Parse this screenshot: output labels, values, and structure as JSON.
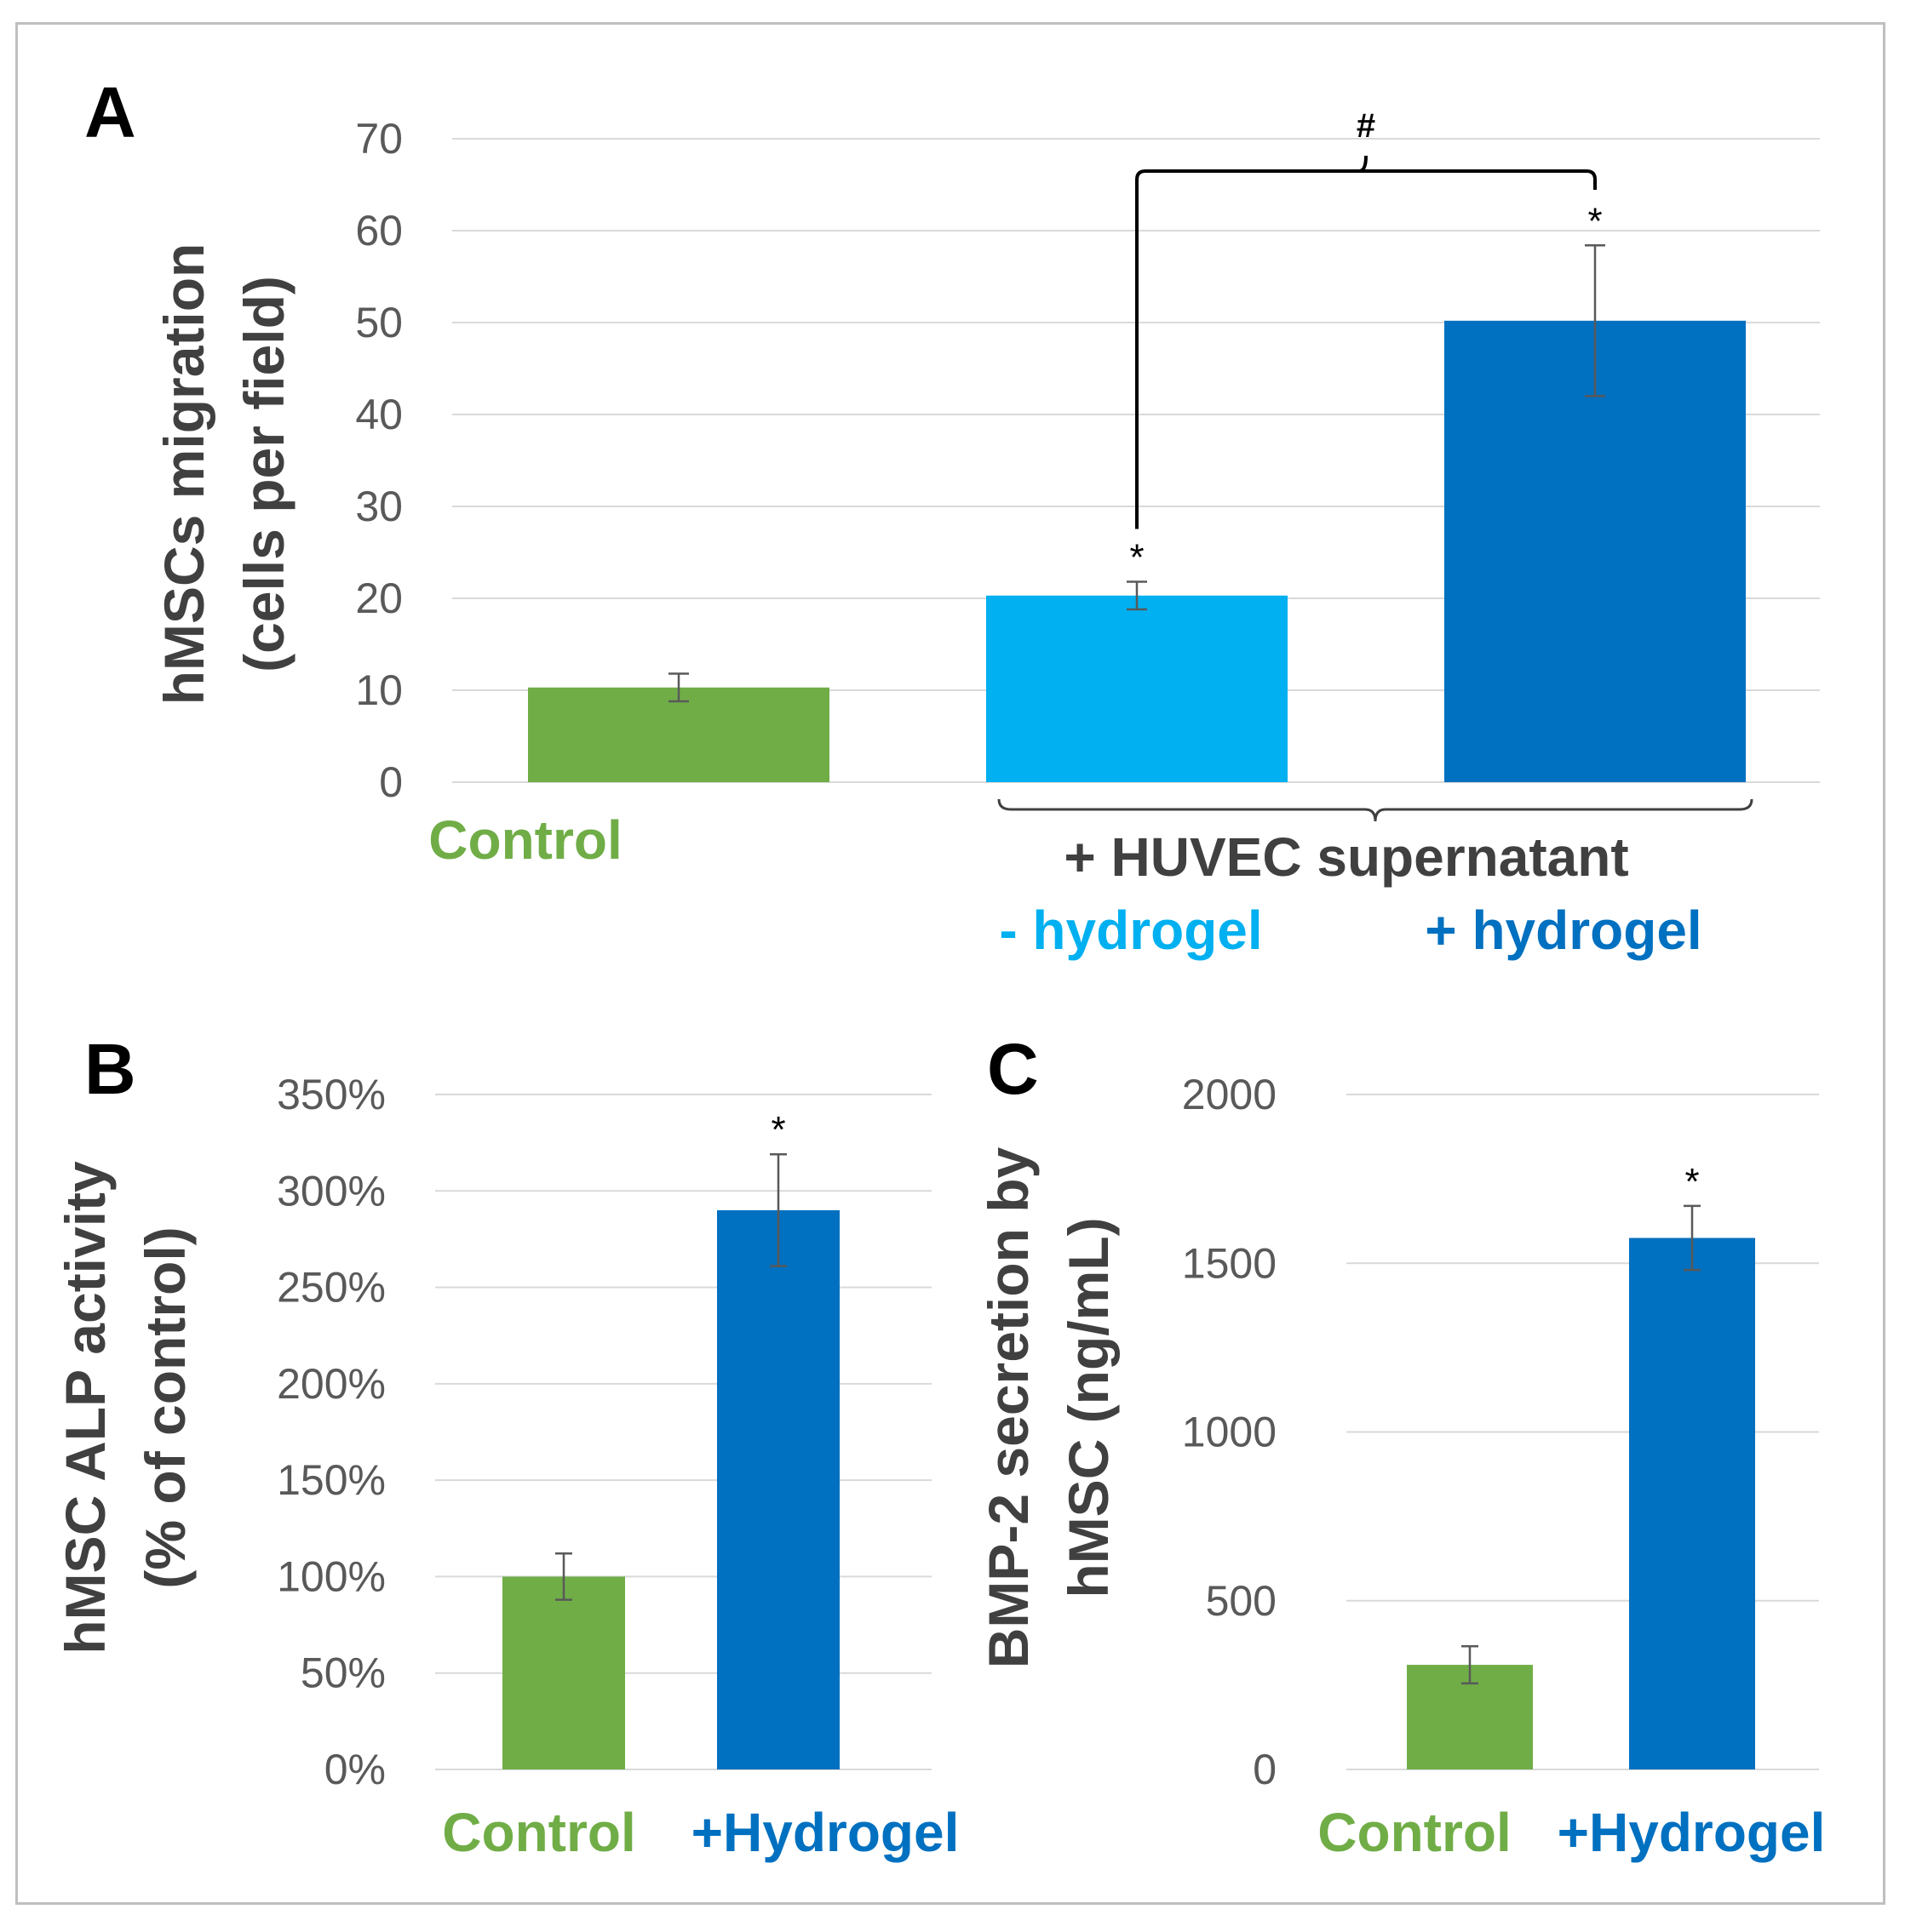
{
  "colors": {
    "green": "#70ad47",
    "light_blue": "#00b0f0",
    "dark_blue": "#0070c0",
    "axis_text": "#595959",
    "label_text": "#404040"
  },
  "chart_data": [
    {
      "panel": "A",
      "type": "bar",
      "ylabel_line1": "hMSCs migration",
      "ylabel_line2": "(cells per field)",
      "ylim": [
        0,
        70
      ],
      "yticks": [
        "0",
        "10",
        "20",
        "30",
        "40",
        "50",
        "60",
        "70"
      ],
      "categories": [
        "Control",
        "- hydrogel",
        "+ hydrogel"
      ],
      "values": [
        10.3,
        20.3,
        50.2
      ],
      "errors": [
        1.5,
        1.5,
        8.2
      ],
      "significance": [
        "",
        "*",
        "*"
      ],
      "group_label": "+ HUVEC supernatant",
      "bracket_label": "#",
      "grid": true
    },
    {
      "panel": "B",
      "type": "bar",
      "ylabel_line1": "hMSC ALP activity",
      "ylabel_line2": "(% of control)",
      "ylim": [
        0,
        350
      ],
      "yticks": [
        "0%",
        "50%",
        "100%",
        "150%",
        "200%",
        "250%",
        "300%",
        "350%"
      ],
      "categories": [
        "Control",
        "+Hydrogel"
      ],
      "values": [
        100,
        290
      ],
      "errors": [
        12,
        29
      ],
      "significance": [
        "",
        "*"
      ],
      "grid": true
    },
    {
      "panel": "C",
      "type": "bar",
      "ylabel_line1": "BMP-2 secretion by",
      "ylabel_line2": "hMSC (ng/mL)",
      "ylim": [
        0,
        2000
      ],
      "yticks": [
        "0",
        "500",
        "1000",
        "1500",
        "2000"
      ],
      "categories": [
        "Control",
        "+Hydrogel"
      ],
      "values": [
        310,
        1575
      ],
      "errors": [
        55,
        95
      ],
      "significance": [
        "",
        "*"
      ],
      "grid": true
    }
  ]
}
